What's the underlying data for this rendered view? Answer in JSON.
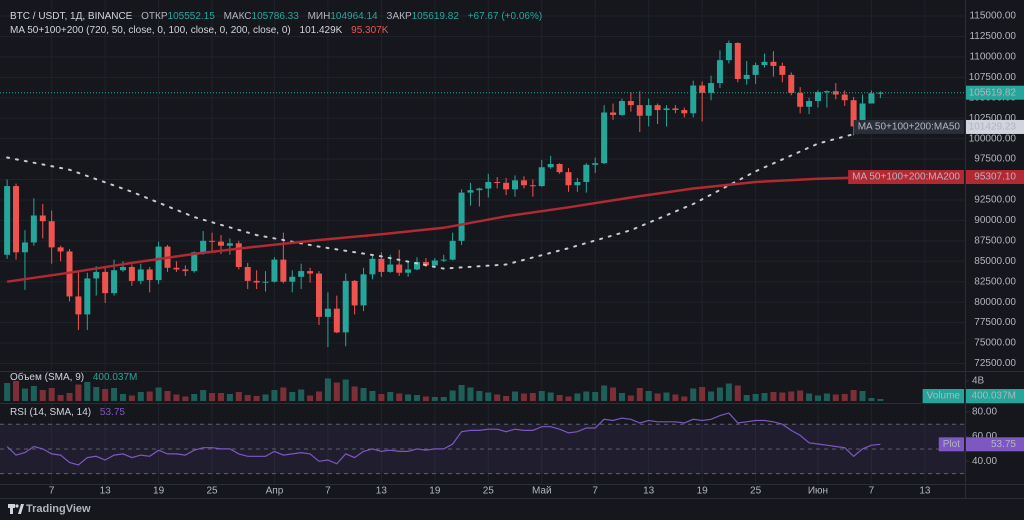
{
  "legend": {
    "title": "BTC / USDT, 1Д, BINANCE",
    "open_label": "ОТКР",
    "high_label": "МАКС",
    "low_label": "МИН",
    "close_label": "ЗАКР",
    "change": "+67.67 (+0.06%)"
  },
  "chart_data": {
    "type": "candlestick",
    "grid": true,
    "last_price_line": true,
    "up_color": "#26a69a",
    "down_color": "#ef5350",
    "xlim": [
      -0.8,
      107.5
    ],
    "xticks": [
      {
        "value": 5,
        "label": "7"
      },
      {
        "value": 11,
        "label": "13"
      },
      {
        "value": 17,
        "label": "19"
      },
      {
        "value": 23,
        "label": "25"
      },
      {
        "value": 30,
        "label": "Апр"
      },
      {
        "value": 36,
        "label": "7"
      },
      {
        "value": 42,
        "label": "13"
      },
      {
        "value": 48,
        "label": "19"
      },
      {
        "value": 54,
        "label": "25"
      },
      {
        "value": 60,
        "label": "Май"
      },
      {
        "value": 66,
        "label": "7"
      },
      {
        "value": 72,
        "label": "13"
      },
      {
        "value": 78,
        "label": "19"
      },
      {
        "value": 84,
        "label": "25"
      },
      {
        "value": 91,
        "label": "Июн"
      },
      {
        "value": 97,
        "label": "7"
      },
      {
        "value": 103,
        "label": "13"
      }
    ],
    "ylim": [
      71700,
      116960
    ],
    "yticks": [
      {
        "value": 72500,
        "label": "72500.00"
      },
      {
        "value": 75000,
        "label": "75000.00"
      },
      {
        "value": 77500,
        "label": "77500.00"
      },
      {
        "value": 80000,
        "label": "80000.00"
      },
      {
        "value": 82500,
        "label": "82500.00"
      },
      {
        "value": 85000,
        "label": "85000.00"
      },
      {
        "value": 87500,
        "label": "87500.00"
      },
      {
        "value": 90000,
        "label": "90000.00"
      },
      {
        "value": 92500,
        "label": "92500.00"
      },
      {
        "value": 95000,
        "label": "95000.00"
      },
      {
        "value": 97500,
        "label": "97500.00"
      },
      {
        "value": 100000,
        "label": "100000.00"
      },
      {
        "value": 102500,
        "label": "102500.00"
      },
      {
        "value": 105000,
        "label": "105000.00"
      },
      {
        "value": 107500,
        "label": "107500.00"
      },
      {
        "value": 110000,
        "label": "110000.00"
      },
      {
        "value": 112500,
        "label": "112500.00"
      },
      {
        "value": 115000,
        "label": "115000.00"
      }
    ],
    "open": [
      85800,
      94200,
      86100,
      87300,
      90600,
      89900,
      86700,
      86200,
      80700,
      78500,
      82900,
      83700,
      81100,
      83900,
      84300,
      82600,
      84000,
      82700,
      86800,
      84200,
      84000,
      83800,
      86100,
      87500,
      87400,
      86900,
      87200,
      84300,
      82600,
      82400,
      82500,
      85200,
      82500,
      83100,
      83800,
      83500,
      78200,
      79200,
      76300,
      82600,
      79600,
      83400,
      85300,
      83700,
      84600,
      83600,
      84000,
      84900,
      84500,
      85100,
      85200,
      87500,
      93400,
      93700,
      93900,
      94700,
      94600,
      93800,
      94900,
      94300,
      94200,
      96500,
      96900,
      95900,
      94300,
      94700,
      96800,
      97000,
      103200,
      102900,
      104600,
      104100,
      102800,
      104100,
      103500,
      103700,
      103500,
      103100,
      106500,
      105600,
      106800,
      109600,
      111700,
      107300,
      107800,
      109000,
      109400,
      108900,
      107800,
      105600,
      103900,
      104600,
      105700,
      105800,
      105400,
      104700,
      101500,
      104300,
      105552.15
    ],
    "high": [
      95000,
      94500,
      88800,
      92700,
      92000,
      91200,
      86900,
      86500,
      83900,
      83600,
      84400,
      84300,
      85200,
      85000,
      84600,
      84700,
      84300,
      87400,
      87000,
      85000,
      84500,
      86200,
      88700,
      88500,
      88200,
      87800,
      87500,
      84800,
      83900,
      83800,
      85500,
      88500,
      83900,
      84700,
      84200,
      83800,
      81200,
      80800,
      83500,
      82700,
      84200,
      85800,
      86100,
      85800,
      86400,
      84900,
      85500,
      85400,
      85400,
      85800,
      88500,
      93800,
      94600,
      94000,
      95700,
      95300,
      95200,
      95500,
      95400,
      95000,
      97400,
      97900,
      97000,
      96400,
      95200,
      97000,
      97700,
      104100,
      104300,
      104900,
      105700,
      105800,
      104900,
      104300,
      104100,
      104100,
      103800,
      107100,
      107000,
      107700,
      110800,
      112000,
      111800,
      109500,
      109300,
      110400,
      110700,
      109300,
      108100,
      106300,
      105000,
      105900,
      105900,
      106800,
      105900,
      105100,
      105400,
      105900,
      105786.33
    ],
    "low": [
      85300,
      85200,
      81500,
      86900,
      87800,
      84700,
      85000,
      80100,
      76600,
      76600,
      80800,
      79900,
      80800,
      83700,
      82000,
      82200,
      81200,
      82200,
      83700,
      83700,
      83200,
      83600,
      85800,
      86300,
      85900,
      85800,
      84000,
      81600,
      81600,
      81300,
      82400,
      82300,
      81200,
      81600,
      82400,
      77200,
      74500,
      76200,
      74600,
      78500,
      78900,
      82800,
      83100,
      83600,
      83200,
      83100,
      83900,
      84300,
      84400,
      84900,
      85100,
      87000,
      91800,
      91700,
      92800,
      93900,
      93100,
      92900,
      93900,
      92900,
      94100,
      96300,
      95700,
      93500,
      93500,
      93400,
      95800,
      96900,
      102300,
      102800,
      103300,
      100800,
      101500,
      101800,
      101500,
      103100,
      102600,
      102600,
      102100,
      104700,
      106200,
      109200,
      106900,
      106600,
      106700,
      108700,
      107600,
      106900,
      105300,
      103100,
      103000,
      103800,
      103800,
      104800,
      104000,
      100400,
      101100,
      104300,
      104964.14
    ],
    "close": [
      94200,
      86100,
      87300,
      90600,
      89900,
      86700,
      86200,
      80700,
      78500,
      82900,
      83700,
      81100,
      83900,
      84300,
      82600,
      84000,
      82700,
      86800,
      84200,
      84000,
      83800,
      86100,
      87500,
      87400,
      86900,
      87200,
      84300,
      82600,
      82400,
      82500,
      85200,
      82500,
      83100,
      83800,
      83500,
      78200,
      79200,
      76300,
      82600,
      79600,
      83400,
      85300,
      83700,
      84600,
      83600,
      84000,
      84900,
      84500,
      85100,
      85200,
      87500,
      93400,
      93700,
      93900,
      94700,
      94600,
      93800,
      94900,
      94300,
      94200,
      96500,
      96900,
      95900,
      94300,
      94700,
      96800,
      97000,
      103200,
      102900,
      104600,
      104100,
      102800,
      104100,
      103500,
      103700,
      103500,
      103100,
      106500,
      105600,
      106800,
      109600,
      111700,
      107300,
      107800,
      109000,
      109400,
      108900,
      107800,
      105600,
      103900,
      104600,
      105700,
      105800,
      105400,
      104700,
      101500,
      104300,
      105550,
      105619.82
    ],
    "ma": {
      "label": "MA 50+100+200 (720, 50, close, 0, 100, close, 0, 200, close, 0)",
      "series": [
        {
          "name": "MA 50+100+200:MA50",
          "color": "#c8cad0",
          "style": "dotted",
          "legend_label": "101.429K",
          "axis_label": "101429.23",
          "x": [
            0,
            7,
            14,
            21,
            28,
            35,
            42,
            49,
            56,
            63,
            70,
            77,
            84,
            91,
            98
          ],
          "values": [
            97700,
            96200,
            93500,
            90400,
            88200,
            86800,
            85600,
            84100,
            84600,
            86600,
            88800,
            92000,
            96000,
            99400,
            101429.23
          ]
        },
        {
          "name": "MA 50+100+200:MA200",
          "color": "#b22833",
          "style": "solid",
          "legend_label": "95.307K",
          "axis_label": "95307.10",
          "x": [
            0,
            7,
            14,
            21,
            28,
            35,
            42,
            49,
            56,
            63,
            70,
            77,
            84,
            91,
            98
          ],
          "values": [
            82500,
            83600,
            84800,
            85900,
            86800,
            87600,
            88300,
            89100,
            90500,
            91600,
            92800,
            93900,
            94700,
            95100,
            95307.1
          ]
        }
      ]
    },
    "volume": {
      "label": "Объем (SMA, 9)",
      "name": "Volume",
      "last_value_label": "400.037M",
      "up_color": "#1f5f5a",
      "down_color": "#7d2f37",
      "ylim": [
        0,
        5800
      ],
      "yticks": [
        {
          "value": 4000,
          "label": "4B"
        }
      ],
      "values": [
        3600,
        4000,
        2500,
        3000,
        2200,
        2600,
        1200,
        1600,
        3300,
        3800,
        2800,
        2400,
        2600,
        1400,
        1100,
        1800,
        1900,
        2700,
        2000,
        1300,
        900,
        1400,
        2200,
        1600,
        1600,
        1400,
        1800,
        1200,
        1000,
        1300,
        2200,
        2700,
        1800,
        2300,
        1100,
        1900,
        4500,
        3700,
        4300,
        2900,
        2600,
        2000,
        1400,
        1800,
        1500,
        1300,
        1200,
        900,
        800,
        800,
        2100,
        3200,
        2700,
        2000,
        1700,
        1300,
        1000,
        1900,
        1500,
        1600,
        2000,
        1700,
        1200,
        900,
        1500,
        1900,
        1800,
        3100,
        2700,
        1600,
        1100,
        2600,
        2000,
        1500,
        1700,
        1300,
        900,
        2500,
        2800,
        1900,
        2700,
        3500,
        3100,
        1200,
        1400,
        1600,
        1800,
        1700,
        1900,
        2100,
        1500,
        1100,
        1500,
        1300,
        1400,
        2200,
        2000,
        600,
        400.037
      ]
    },
    "rsi": {
      "label": "RSI (14, SMA, 14)",
      "name": "Plot",
      "color": "#7e57c2",
      "ylim": [
        21.6,
        86.4
      ],
      "yticks": [
        {
          "value": 80,
          "label": "80.00"
        },
        {
          "value": 60,
          "label": "60.00"
        },
        {
          "value": 40,
          "label": "40.00"
        }
      ],
      "levels": [
        70,
        50,
        30
      ],
      "values": [
        52,
        45,
        47,
        52,
        50,
        46,
        45,
        39,
        37,
        43,
        44,
        41,
        45,
        46,
        43,
        45,
        44,
        49,
        46,
        46,
        45,
        49,
        51,
        51,
        50,
        50,
        46,
        44,
        44,
        44,
        48,
        45,
        46,
        47,
        46,
        40,
        41,
        38,
        46,
        43,
        48,
        50,
        48,
        49,
        48,
        48,
        50,
        49,
        50,
        50,
        54,
        64,
        65,
        65,
        66,
        66,
        64,
        66,
        65,
        65,
        68,
        68,
        66,
        63,
        64,
        67,
        67,
        74,
        73,
        75,
        74,
        71,
        73,
        72,
        72,
        72,
        71,
        74,
        73,
        74,
        77,
        79,
        71,
        72,
        73,
        73,
        72,
        70,
        65,
        61,
        55,
        54,
        53,
        52,
        51,
        44,
        50,
        53,
        53.75
      ]
    }
  },
  "footer": {
    "brand": "TradingView"
  }
}
